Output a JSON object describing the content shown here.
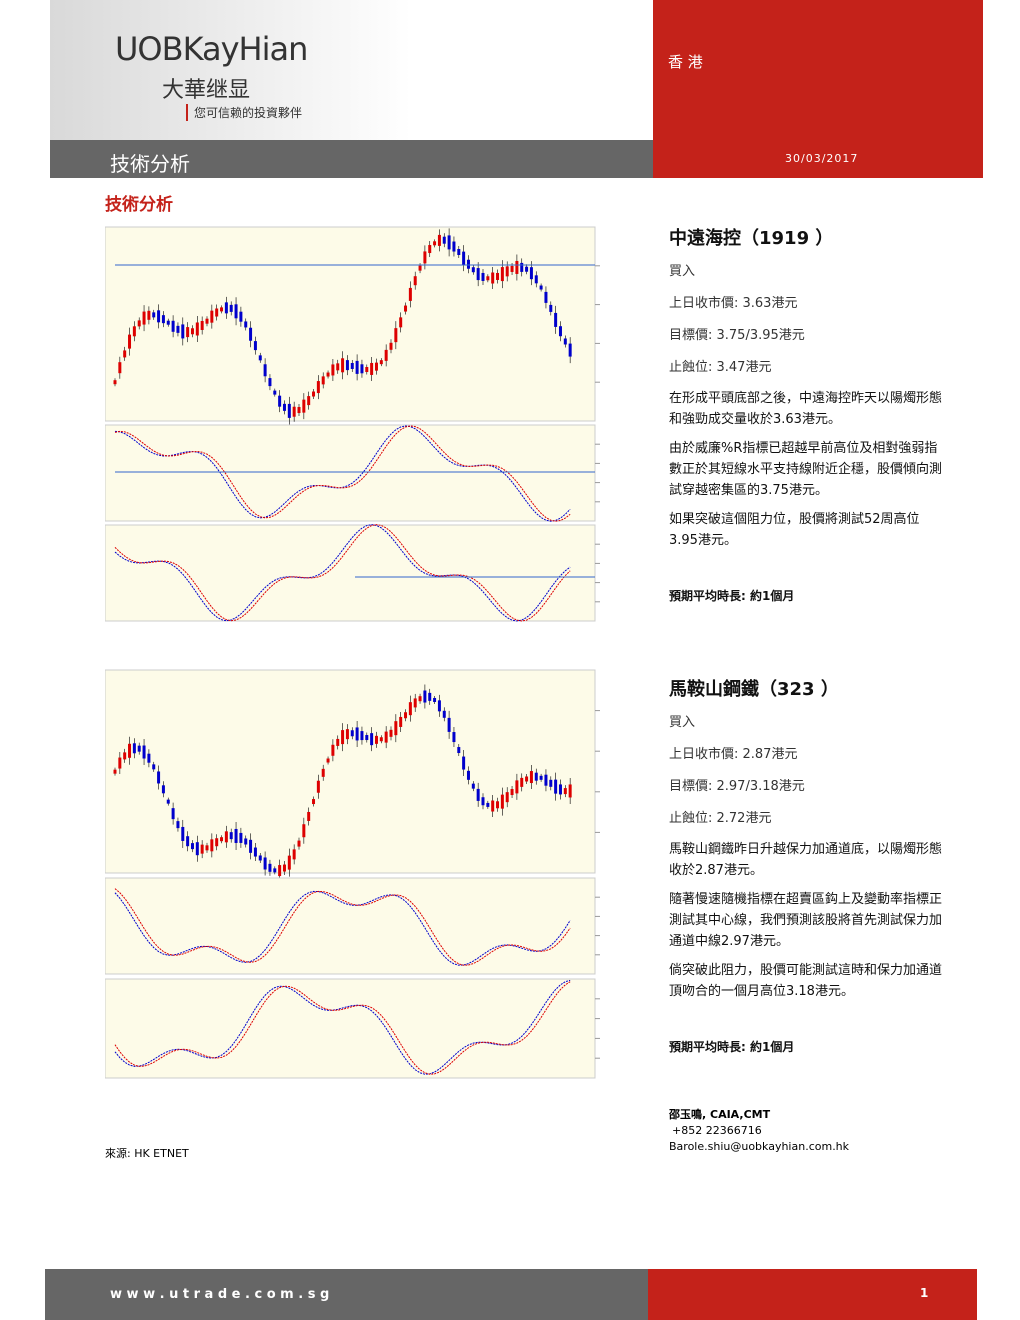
{
  "header": {
    "logo": "UOBKayHian",
    "logo_cn": "大華继显",
    "tagline": "您可信赖的投資夥伴",
    "region": "香 港",
    "section": "技術分析",
    "date": "30/03/2017"
  },
  "page_title": "技術分析",
  "stocks": [
    {
      "name": "中遠海控（1919 ）",
      "rating": "買入",
      "prev_close": "上日收市價: 3.63港元",
      "target": "目標價: 3.75/3.95港元",
      "stop_loss": "止蝕位: 3.47港元",
      "paragraphs": [
        "在形成平頭底部之後，中遠海控昨天以陽燭形態和強勁成交量收於3.63港元。",
        "由於威廉%R指標已超越早前高位及相對強弱指數正於其短線水平支持線附近企穩，股價傾向測試穿越密集區的3.75港元。",
        "如果突破這個阻力位，股價將測試52周高位3.95港元。"
      ],
      "horizon": "預期平均時長: 約1個月"
    },
    {
      "name": "馬鞍山鋼鐵（323 ）",
      "rating": "買入",
      "prev_close": "上日收市價: 2.87港元",
      "target": "目標價:  2.97/3.18港元",
      "stop_loss": "止蝕位:  2.72港元",
      "paragraphs": [
        "馬鞍山鋼鐵昨日升越保力加通道底，以陽燭形態收於2.87港元。",
        "隨著慢速隨機指標在超賣區鈎上及變動率指標正測試其中心線，我們預測該股將首先測試保力加通道中線2.97港元。",
        "倘突破此阻力，股價可能測試這時和保力加通道頂吻合的一個月高位3.18港元。"
      ],
      "horizon": "預期平均時長: 約1個月"
    }
  ],
  "source": "來源: HK ETNET",
  "contact": {
    "name": "邵玉鳴, CAIA,CMT",
    "phone": "+852 22366716",
    "email": "Barole.shiu@uobkayhian.com.hk"
  },
  "footer": {
    "url": "w w w . u t r a d e . c o m . s g",
    "page": "1"
  }
}
